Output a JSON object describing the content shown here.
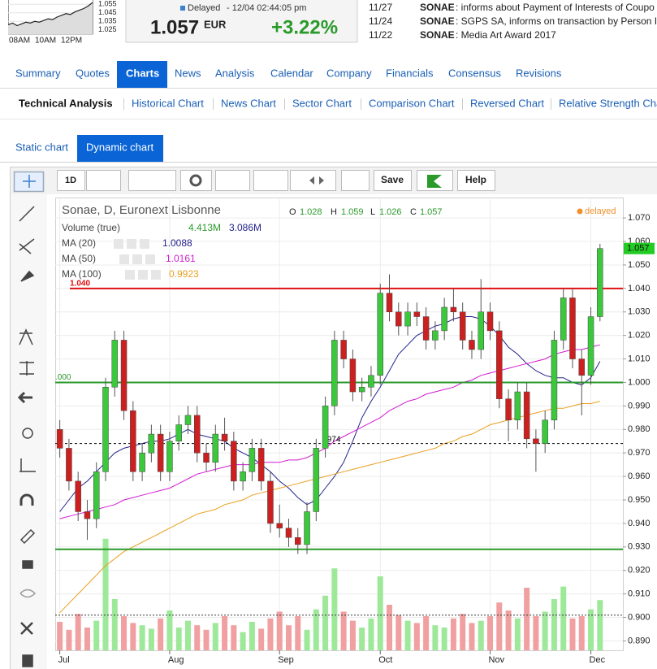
{
  "header": {
    "mini_chart": {
      "values": [
        1.031,
        1.033,
        1.03,
        1.032,
        1.034,
        1.033,
        1.035,
        1.034,
        1.036,
        1.038,
        1.037,
        1.04,
        1.042,
        1.044,
        1.043,
        1.046,
        1.048,
        1.05,
        1.053,
        1.057
      ],
      "ylim": [
        1.02,
        1.06
      ],
      "yticks": [
        {
          "value": 1.055,
          "label": "1.055"
        },
        {
          "value": 1.045,
          "label": "1.045"
        },
        {
          "value": 1.035,
          "label": "1.035"
        },
        {
          "value": 1.025,
          "label": "1.025"
        }
      ],
      "xticks": [
        "08AM",
        "10AM",
        "12PM"
      ]
    },
    "quote": {
      "status": "Delayed",
      "time": "- 12/04 02:44:05 pm",
      "price": "1.057",
      "currency": "EUR",
      "change": "+3.22%"
    },
    "news": [
      {
        "date": "11/27",
        "source": "SONAE",
        "text": ": informs about Payment of Interests of Coupo"
      },
      {
        "date": "11/24",
        "source": "SONAE",
        "text": ": SGPS SA, informs on transaction by Person I"
      },
      {
        "date": "11/22",
        "source": "SONAE",
        "text": ": Media Art Award 2017"
      }
    ]
  },
  "nav": {
    "tabs": [
      "Summary",
      "Quotes",
      "Charts",
      "News",
      "Analysis",
      "Calendar",
      "Company",
      "Financials",
      "Consensus",
      "Revisions"
    ],
    "active": 2
  },
  "subnav": {
    "tabs": [
      "Technical Analysis",
      "Historical Chart",
      "News Chart",
      "Sector Chart",
      "Comparison Chart",
      "Reversed Chart",
      "Relative Strength Cha"
    ]
  },
  "chart_tabs": {
    "tabs": [
      "Static chart",
      "Dynamic chart"
    ],
    "active": 1
  },
  "toolbar": {
    "period": "1D",
    "save": "Save",
    "help": "Help"
  },
  "chart_data": {
    "type": "candlestick",
    "title": "Sonae, D, Euronext Lisbonne",
    "delayed_label": "delayed",
    "ohlc": {
      "o": "O",
      "o_value": "1.028",
      "h": "H",
      "h_value": "1.059",
      "l": "L",
      "l_value": "1.026",
      "c": "C",
      "c_value": "1.057"
    },
    "colors": {
      "up": "#3cc83c",
      "down": "#cc2020",
      "up_volume": "#9ee89a",
      "down_volume": "#f0a0a0"
    },
    "open": [
      0.98,
      0.972,
      0.958,
      0.945,
      0.942,
      0.962,
      0.998,
      1.018,
      0.988,
      0.962,
      0.97,
      0.978,
      0.962,
      0.975,
      0.982,
      0.986,
      0.97,
      0.966,
      0.978,
      0.975,
      0.958,
      0.962,
      0.972,
      0.958,
      0.94,
      0.938,
      0.934,
      0.931,
      0.945,
      0.972,
      0.99,
      1.018,
      1.01,
      0.996,
      0.998,
      1.003,
      1.038,
      1.03,
      1.024,
      1.03,
      1.028,
      1.018,
      1.022,
      1.032,
      1.03,
      1.018,
      1.014,
      1.03,
      1.022,
      0.993,
      0.984,
      0.996,
      0.976,
      0.974,
      0.984,
      1.018,
      1.036,
      1.01,
      1.003,
      1.028
    ],
    "high": [
      0.984,
      0.976,
      0.962,
      0.95,
      0.966,
      1.002,
      1.022,
      1.022,
      0.992,
      0.974,
      0.982,
      0.982,
      0.979,
      0.986,
      0.99,
      0.99,
      0.974,
      0.982,
      0.985,
      0.979,
      0.966,
      0.976,
      0.976,
      0.962,
      0.948,
      0.942,
      0.938,
      0.949,
      0.976,
      0.994,
      1.022,
      1.022,
      1.014,
      1.002,
      1.007,
      1.042,
      1.046,
      1.034,
      1.034,
      1.034,
      1.032,
      1.026,
      1.036,
      1.04,
      1.034,
      1.022,
      1.044,
      1.034,
      1.026,
      0.997,
      1.0,
      1.0,
      0.98,
      0.988,
      1.022,
      1.04,
      1.04,
      1.014,
      1.032,
      1.059
    ],
    "low": [
      0.968,
      0.954,
      0.941,
      0.933,
      0.938,
      0.958,
      0.994,
      0.984,
      0.958,
      0.958,
      0.966,
      0.958,
      0.958,
      0.971,
      0.978,
      0.966,
      0.962,
      0.962,
      0.971,
      0.954,
      0.954,
      0.958,
      0.954,
      0.936,
      0.934,
      0.93,
      0.927,
      0.927,
      0.941,
      0.968,
      0.986,
      1.006,
      0.992,
      0.992,
      0.994,
      0.999,
      1.026,
      1.02,
      1.02,
      1.024,
      1.014,
      1.014,
      1.018,
      1.026,
      1.014,
      1.01,
      1.01,
      1.018,
      0.989,
      0.975,
      0.98,
      0.972,
      0.962,
      0.97,
      0.98,
      1.014,
      1.006,
      0.986,
      0.999,
      1.026
    ],
    "close": [
      0.972,
      0.958,
      0.945,
      0.942,
      0.962,
      0.998,
      1.018,
      0.988,
      0.962,
      0.97,
      0.978,
      0.962,
      0.975,
      0.982,
      0.986,
      0.97,
      0.966,
      0.978,
      0.975,
      0.958,
      0.962,
      0.972,
      0.958,
      0.94,
      0.938,
      0.934,
      0.931,
      0.945,
      0.972,
      0.99,
      1.018,
      1.01,
      0.996,
      0.998,
      1.003,
      1.038,
      1.03,
      1.024,
      1.03,
      1.028,
      1.018,
      1.022,
      1.032,
      1.03,
      1.018,
      1.014,
      1.03,
      1.022,
      0.993,
      0.984,
      0.996,
      0.976,
      0.974,
      0.984,
      1.018,
      1.036,
      1.01,
      1.003,
      1.028,
      1.057
    ],
    "volume": {
      "name": "Volume (true)",
      "values": [
        2.5,
        1.8,
        3.2,
        2.0,
        2.6,
        9.8,
        4.5,
        3.0,
        2.4,
        2.2,
        1.9,
        2.8,
        3.5,
        2.0,
        2.6,
        2.2,
        1.8,
        2.4,
        3.0,
        2.2,
        1.6,
        2.5,
        1.9,
        2.8,
        3.4,
        2.2,
        3.0,
        1.8,
        3.6,
        4.8,
        7.2,
        3.4,
        2.6,
        2.0,
        2.8,
        6.5,
        4.0,
        3.1,
        2.6,
        2.4,
        3.0,
        2.2,
        2.0,
        2.8,
        3.2,
        2.4,
        2.6,
        3.0,
        4.2,
        3.5,
        2.8,
        5.5,
        3.0,
        3.4,
        4.5,
        5.6,
        2.8,
        3.0,
        3.6,
        4.413
      ],
      "last_label": "4.413M",
      "average": 3.086,
      "average_label": "3.086M"
    },
    "ma": [
      {
        "name": "MA (20)",
        "value_label": "1.0088",
        "color": "#22228c",
        "values": [
          0.945,
          0.95,
          0.955,
          0.958,
          0.962,
          0.966,
          0.97,
          0.972,
          0.973,
          0.974,
          0.975,
          0.975,
          0.976,
          0.978,
          0.98,
          0.978,
          0.977,
          0.976,
          0.975,
          0.972,
          0.97,
          0.968,
          0.965,
          0.962,
          0.958,
          0.955,
          0.951,
          0.948,
          0.95,
          0.955,
          0.96,
          0.966,
          0.975,
          0.985,
          0.992,
          0.998,
          1.005,
          1.012,
          1.016,
          1.02,
          1.022,
          1.024,
          1.025,
          1.027,
          1.028,
          1.028,
          1.027,
          1.024,
          1.02,
          1.015,
          1.012,
          1.008,
          1.005,
          1.003,
          1.002,
          1.002,
          1.0,
          0.999,
          1.002,
          1.009
        ]
      },
      {
        "name": "MA (50)",
        "value_label": "1.0161",
        "color": "#d21ad2",
        "values": [
          0.942,
          0.943,
          0.944,
          0.945,
          0.946,
          0.947,
          0.948,
          0.95,
          0.951,
          0.952,
          0.953,
          0.954,
          0.955,
          0.957,
          0.959,
          0.961,
          0.962,
          0.963,
          0.964,
          0.965,
          0.965,
          0.965,
          0.966,
          0.966,
          0.966,
          0.967,
          0.967,
          0.968,
          0.97,
          0.972,
          0.975,
          0.977,
          0.979,
          0.981,
          0.983,
          0.985,
          0.988,
          0.99,
          0.992,
          0.993,
          0.995,
          0.996,
          0.997,
          0.998,
          1.0,
          1.001,
          1.003,
          1.004,
          1.005,
          1.006,
          1.007,
          1.008,
          1.009,
          1.01,
          1.012,
          1.013,
          1.014,
          1.014,
          1.015,
          1.016
        ]
      },
      {
        "name": "MA (100)",
        "value_label": "0.9923",
        "color": "#e8a020",
        "values": [
          0.902,
          0.906,
          0.91,
          0.914,
          0.918,
          0.922,
          0.925,
          0.928,
          0.93,
          0.932,
          0.934,
          0.936,
          0.938,
          0.94,
          0.942,
          0.944,
          0.945,
          0.946,
          0.948,
          0.949,
          0.95,
          0.952,
          0.953,
          0.954,
          0.955,
          0.956,
          0.957,
          0.958,
          0.959,
          0.96,
          0.961,
          0.962,
          0.963,
          0.964,
          0.965,
          0.966,
          0.967,
          0.968,
          0.969,
          0.97,
          0.971,
          0.972,
          0.974,
          0.975,
          0.977,
          0.978,
          0.98,
          0.982,
          0.983,
          0.984,
          0.985,
          0.986,
          0.987,
          0.988,
          0.989,
          0.989,
          0.99,
          0.991,
          0.991,
          0.992
        ]
      }
    ],
    "lines": [
      {
        "value": 1.04,
        "label": "1.040",
        "color": "#e01010"
      },
      {
        "value": 1.0,
        "label": ".000",
        "color": "#2a9a2a"
      },
      {
        "value": 0.929,
        "color": "#2a9a2a"
      },
      {
        "value": 0.974,
        "label": ".974",
        "color": "#000000",
        "dashed": true
      }
    ],
    "last_price": {
      "value": 1.057,
      "label": "1.057"
    },
    "ylim": [
      0.886,
      1.078
    ],
    "yticks": [
      {
        "value": 1.07,
        "label": "1.070"
      },
      {
        "value": 1.06,
        "label": "1.060"
      },
      {
        "value": 1.05,
        "label": "1.050"
      },
      {
        "value": 1.04,
        "label": "1.040"
      },
      {
        "value": 1.03,
        "label": "1.030"
      },
      {
        "value": 1.02,
        "label": "1.020"
      },
      {
        "value": 1.01,
        "label": "1.010"
      },
      {
        "value": 1.0,
        "label": "1.000"
      },
      {
        "value": 0.99,
        "label": "0.990"
      },
      {
        "value": 0.98,
        "label": "0.980"
      },
      {
        "value": 0.97,
        "label": "0.970"
      },
      {
        "value": 0.96,
        "label": "0.960"
      },
      {
        "value": 0.95,
        "label": "0.950"
      },
      {
        "value": 0.94,
        "label": "0.940"
      },
      {
        "value": 0.93,
        "label": "0.930"
      },
      {
        "value": 0.92,
        "label": "0.920"
      },
      {
        "value": 0.91,
        "label": "0.910"
      },
      {
        "value": 0.9,
        "label": "0.900"
      },
      {
        "value": 0.89,
        "label": "0.890"
      }
    ],
    "xlim": [
      -0.5,
      61.5
    ],
    "xticks": [
      {
        "value": 0,
        "label": "Jul"
      },
      {
        "value": 12,
        "label": "Aug"
      },
      {
        "value": 24,
        "label": "Sep"
      },
      {
        "value": 35,
        "label": "Oct"
      },
      {
        "value": 47,
        "label": "Nov"
      },
      {
        "value": 58,
        "label": "Dec"
      }
    ],
    "grid": true
  }
}
